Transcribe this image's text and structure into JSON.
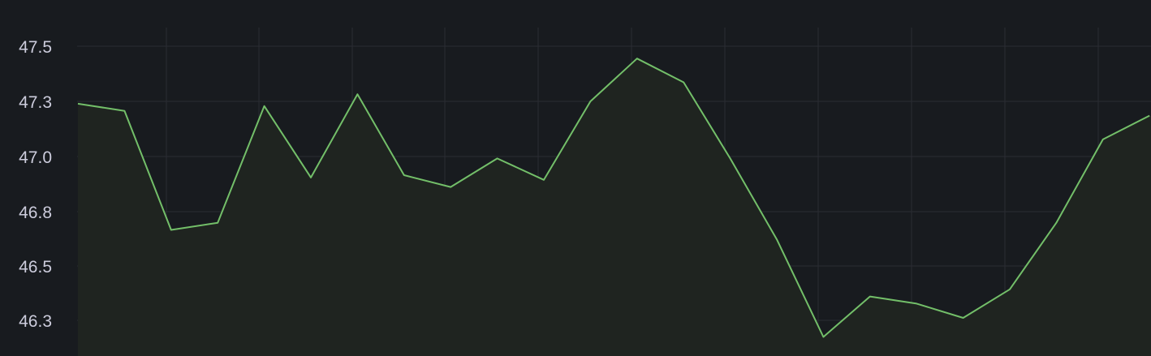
{
  "chart_data": {
    "type": "area",
    "title": "",
    "xlabel": "",
    "ylabel": "",
    "grid": true,
    "legend": "none",
    "y_ticks": [
      "47.5",
      "47.3",
      "47.0",
      "46.8",
      "46.5",
      "46.3"
    ],
    "ylim": [
      46.18,
      47.56
    ],
    "x_count": 24,
    "values": [
      47.24,
      47.21,
      46.71,
      46.74,
      47.23,
      46.93,
      47.28,
      46.94,
      46.89,
      47.01,
      46.92,
      47.25,
      47.43,
      47.33,
      47.01,
      46.67,
      46.26,
      46.43,
      46.4,
      46.34,
      46.46,
      46.74,
      47.09,
      47.19
    ],
    "colors": {
      "background": "#181b1f",
      "grid": "#2a2d33",
      "line": "#73bf69",
      "fill": "#1f2420",
      "tick_text": "#ccccdc"
    }
  }
}
